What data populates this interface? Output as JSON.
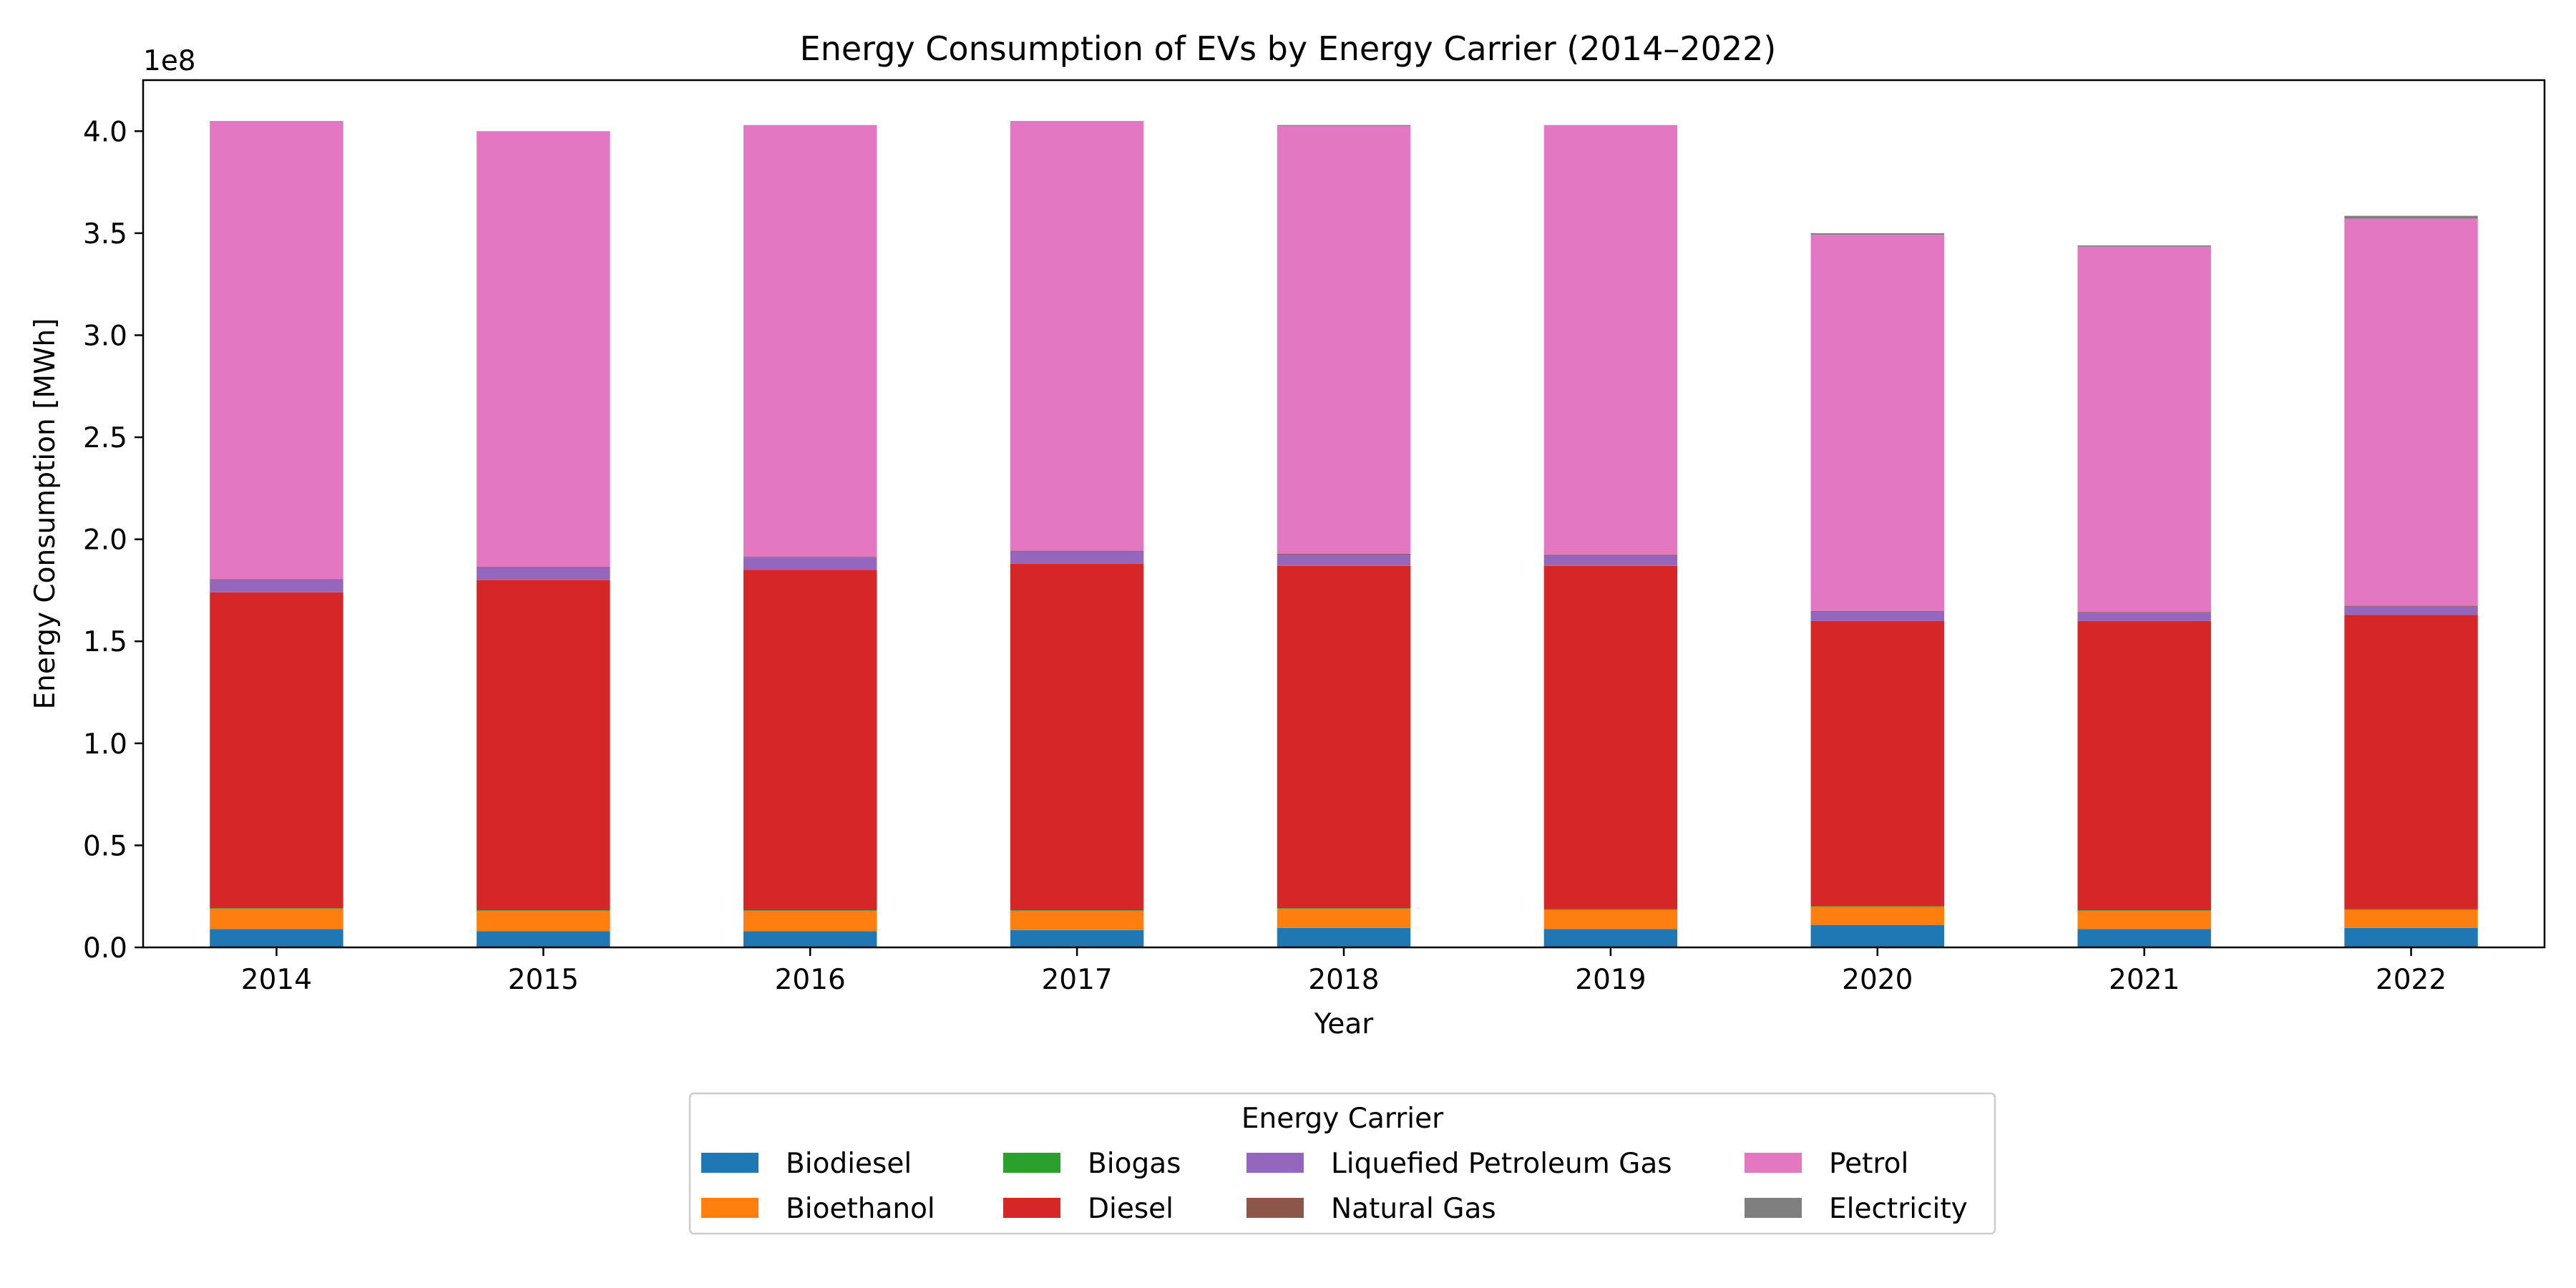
{
  "chart_data": {
    "type": "bar",
    "stacked": true,
    "title": "Energy Consumption of EVs by Energy Carrier (2014–2022)",
    "xlabel": "Year",
    "ylabel": "Energy Consumption [MWh]",
    "y_offset_label": "1e8",
    "y_scale": 100000000,
    "ylim": [
      0,
      4.25
    ],
    "yticks": [
      "0.0",
      "0.5",
      "1.0",
      "1.5",
      "2.0",
      "2.5",
      "3.0",
      "3.5",
      "4.0"
    ],
    "categories": [
      "2014",
      "2015",
      "2016",
      "2017",
      "2018",
      "2019",
      "2020",
      "2021",
      "2022"
    ],
    "series": [
      {
        "name": "Biodiesel",
        "color": "#1f77b4",
        "values": [
          0.09,
          0.08,
          0.08,
          0.085,
          0.095,
          0.09,
          0.11,
          0.09,
          0.095
        ]
      },
      {
        "name": "Bioethanol",
        "color": "#ff7f0e",
        "values": [
          0.1,
          0.1,
          0.1,
          0.095,
          0.095,
          0.095,
          0.09,
          0.09,
          0.09
        ]
      },
      {
        "name": "Biogas",
        "color": "#2ca02c",
        "values": [
          0.002,
          0.002,
          0.002,
          0.002,
          0.002,
          0.002,
          0.002,
          0.002,
          0.002
        ]
      },
      {
        "name": "Diesel",
        "color": "#d62728",
        "values": [
          1.548,
          1.618,
          1.668,
          1.698,
          1.678,
          1.683,
          1.398,
          1.418,
          1.443
        ]
      },
      {
        "name": "Liquefied Petroleum Gas",
        "color": "#9467bd",
        "values": [
          0.06,
          0.06,
          0.06,
          0.06,
          0.055,
          0.05,
          0.045,
          0.04,
          0.04
        ]
      },
      {
        "name": "Natural Gas",
        "color": "#8c564b",
        "values": [
          0.004,
          0.004,
          0.004,
          0.004,
          0.004,
          0.004,
          0.004,
          0.004,
          0.004
        ]
      },
      {
        "name": "Petrol",
        "color": "#e377c2",
        "values": [
          2.246,
          2.136,
          2.116,
          2.106,
          2.096,
          2.106,
          1.843,
          1.79,
          1.897
        ]
      },
      {
        "name": "Electricity",
        "color": "#7f7f7f",
        "values": [
          0.0,
          0.0,
          0.0,
          0.0,
          0.005,
          0.0,
          0.008,
          0.006,
          0.014
        ]
      }
    ],
    "legend": {
      "title": "Energy Carrier",
      "placement": "bottom-center",
      "columns": 4
    }
  }
}
